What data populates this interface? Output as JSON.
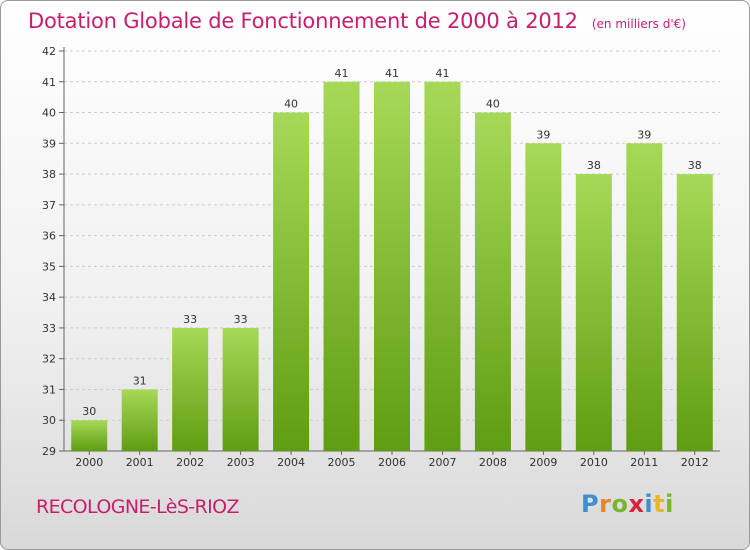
{
  "header": {
    "title": "Dotation Globale de Fonctionnement de 2000 à 2012",
    "subtitle": "(en milliers d'€)"
  },
  "footer": {
    "commune": "RECOLOGNE-LèS-RIOZ",
    "logo_letters": [
      "P",
      "r",
      "o",
      "x",
      "i",
      "t",
      "i"
    ],
    "logo_colors": [
      "#3d8fd0",
      "#e8852a",
      "#7ab52e",
      "#d9233d",
      "#3d8fd0",
      "#e8b62a",
      "#7ab52e"
    ]
  },
  "colors": {
    "bar_top": "#a6d957",
    "bar_bottom": "#5f9d12",
    "grid": "#cccccc",
    "accent": "#c81e6e"
  },
  "chart_data": {
    "type": "bar",
    "title": "Dotation Globale de Fonctionnement de 2000 à 2012",
    "subtitle": "(en milliers d'€)",
    "xlabel": "",
    "ylabel": "",
    "categories": [
      "2000",
      "2001",
      "2002",
      "2003",
      "2004",
      "2005",
      "2006",
      "2007",
      "2008",
      "2009",
      "2010",
      "2011",
      "2012"
    ],
    "values": [
      30,
      31,
      33,
      33,
      40,
      41,
      41,
      41,
      40,
      39,
      38,
      39,
      38
    ],
    "ylim": [
      29,
      42
    ],
    "yticks": [
      29,
      30,
      31,
      32,
      33,
      34,
      35,
      36,
      37,
      38,
      39,
      40,
      41,
      42
    ],
    "grid": true
  }
}
